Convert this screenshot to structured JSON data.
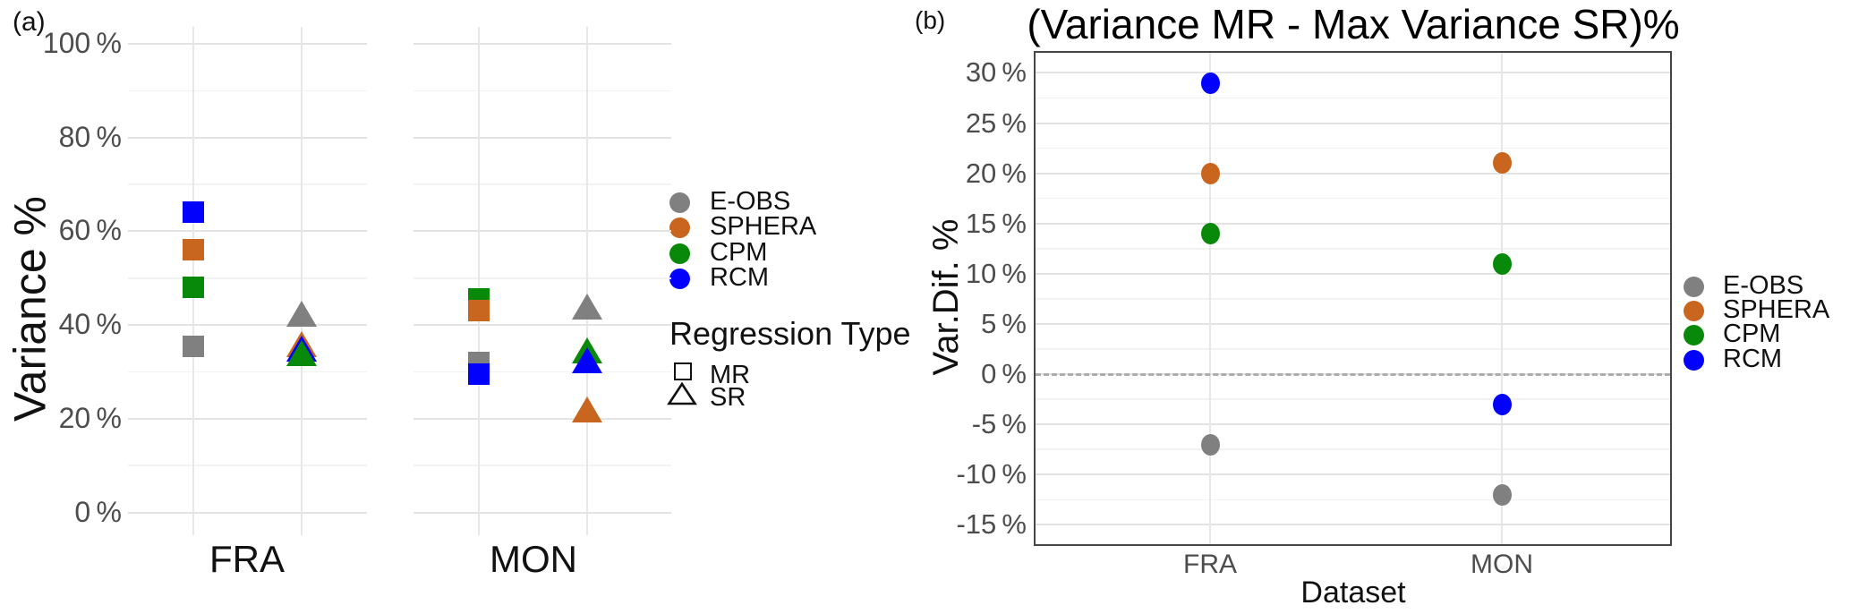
{
  "panel_a": {
    "label": "(a)",
    "shape_legend_title": "Regression Type",
    "shape_legend": [
      {
        "shape": "square",
        "label": "MR"
      },
      {
        "shape": "triangle",
        "label": "SR"
      }
    ]
  },
  "panel_b": {
    "label": "(b)"
  },
  "palette": {
    "E-OBS": "#808080",
    "SPHERA": "#C8661F",
    "CPM": "#098909",
    "RCM": "#0202FC"
  },
  "chart_data": [
    {
      "id": "panel_a",
      "type": "scatter",
      "title": "",
      "xlabel": "",
      "ylabel": "Variance %",
      "categories": [
        "FRA",
        "MON"
      ],
      "shape_by": "Regression Type",
      "shapes": {
        "MR": "square",
        "SR": "triangle"
      },
      "ylim": [
        0,
        100
      ],
      "yticks": [
        0,
        20,
        40,
        60,
        80,
        100
      ],
      "ytick_labels": [
        "0 %",
        "20 %",
        "40 %",
        "60 %",
        "80 %",
        "100 %"
      ],
      "yticks_minor": [
        10,
        30,
        50,
        70,
        90
      ],
      "grid": "major+minor",
      "legend_position": "right",
      "series": [
        {
          "name": "E-OBS",
          "MR": [
            35.5,
            32
          ],
          "SR": [
            42.5,
            44
          ],
          "z": [
            1,
            1,
            1,
            1
          ]
        },
        {
          "name": "SPHERA",
          "MR": [
            56,
            43
          ],
          "SR": [
            36,
            22
          ],
          "z": [
            1,
            2,
            4,
            2
          ]
        },
        {
          "name": "CPM",
          "MR": [
            48,
            45.5
          ],
          "SR": [
            34,
            34.5
          ],
          "z": [
            1,
            4,
            3,
            2
          ]
        },
        {
          "name": "RCM",
          "MR": [
            64,
            29.5
          ],
          "SR": [
            35,
            32.5
          ],
          "z": [
            1,
            3,
            2,
            3
          ]
        }
      ]
    },
    {
      "id": "panel_b",
      "type": "scatter",
      "title": "(Variance MR - Max Variance SR)%",
      "xlabel": "Dataset",
      "ylabel": "Var.Dif. %",
      "categories": [
        "FRA",
        "MON"
      ],
      "ylim": [
        -17.5,
        32
      ],
      "yticks": [
        -15,
        -10,
        -5,
        0,
        5,
        10,
        15,
        20,
        25,
        30
      ],
      "ytick_labels": [
        "-15 %",
        "-10 %",
        "-5 %",
        "0 %",
        "5 %",
        "10 %",
        "15 %",
        "20 %",
        "25 %",
        "30 %"
      ],
      "yticks_minor": [
        -12.5,
        -7.5,
        -2.5,
        2.5,
        7.5,
        12.5,
        17.5,
        22.5,
        27.5
      ],
      "ref_line_y": 0,
      "grid": "major+minor",
      "panel_border": true,
      "legend_position": "right",
      "series": [
        {
          "name": "E-OBS",
          "values": [
            -7,
            -12
          ]
        },
        {
          "name": "SPHERA",
          "values": [
            20,
            21
          ]
        },
        {
          "name": "CPM",
          "values": [
            14,
            11
          ]
        },
        {
          "name": "RCM",
          "values": [
            29,
            -3
          ]
        }
      ]
    }
  ]
}
